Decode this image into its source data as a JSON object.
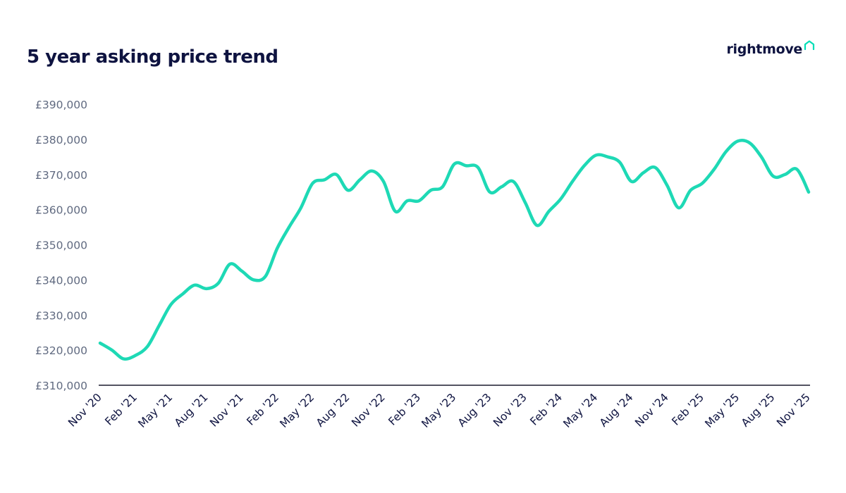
{
  "title": "5 year asking price trend",
  "brand": {
    "name": "rightmove",
    "icon": "house-icon",
    "icon_color": "#00deb6"
  },
  "chart_data": {
    "type": "line",
    "title": "5 year asking price trend",
    "xlabel": "",
    "ylabel": "",
    "ylim": [
      310000,
      390000
    ],
    "y_ticks": [
      "£390,000",
      "£380,000",
      "£370,000",
      "£360,000",
      "£350,000",
      "£340,000",
      "£330,000",
      "£320,000",
      "£310,000"
    ],
    "y_tick_values": [
      390000,
      380000,
      370000,
      360000,
      350000,
      340000,
      330000,
      320000,
      310000
    ],
    "x_ticks": [
      "Nov '20",
      "Feb '21",
      "May '21",
      "Aug '21",
      "Nov '21",
      "Feb '22",
      "May '22",
      "Aug '22",
      "Nov '22",
      "Feb '23",
      "May '23",
      "Aug '23",
      "Nov '23",
      "Feb '24",
      "May '24",
      "Aug '24",
      "Nov '24",
      "Feb '25",
      "May '25",
      "Aug '25",
      "Nov '25"
    ],
    "x": [
      "Nov '20",
      "Dec '20",
      "Jan '21",
      "Feb '21",
      "Mar '21",
      "Apr '21",
      "May '21",
      "Jun '21",
      "Jul '21",
      "Aug '21",
      "Sep '21",
      "Oct '21",
      "Nov '21",
      "Dec '21",
      "Jan '22",
      "Feb '22",
      "Mar '22",
      "Apr '22",
      "May '22",
      "Jun '22",
      "Jul '22",
      "Aug '22",
      "Sep '22",
      "Oct '22",
      "Nov '22",
      "Dec '22",
      "Jan '23",
      "Feb '23",
      "Mar '23",
      "Apr '23",
      "May '23",
      "Jun '23",
      "Jul '23",
      "Aug '23",
      "Sep '23",
      "Oct '23",
      "Nov '23",
      "Dec '23",
      "Jan '24",
      "Feb '24",
      "Mar '24",
      "Apr '24",
      "May '24",
      "Jun '24",
      "Jul '24",
      "Aug '24",
      "Sep '24",
      "Oct '24",
      "Nov '24",
      "Dec '24",
      "Jan '25",
      "Feb '25",
      "Mar '25",
      "Apr '25",
      "May '25",
      "Jun '25",
      "Jul '25",
      "Aug '25",
      "Sep '25",
      "Oct '25",
      "Nov '25"
    ],
    "series": [
      {
        "color": "#1ed9b5",
        "values": [
          322000,
          320000,
          317500,
          318500,
          321000,
          327000,
          333000,
          336000,
          338500,
          337500,
          339000,
          344500,
          342500,
          340000,
          341000,
          349000,
          355000,
          360500,
          367500,
          368500,
          370000,
          365500,
          368500,
          371000,
          368000,
          359500,
          362500,
          362500,
          365500,
          366500,
          373000,
          372500,
          372000,
          365000,
          366500,
          368000,
          362000,
          355500,
          359500,
          363000,
          368000,
          372500,
          375500,
          375000,
          373500,
          368000,
          370500,
          372000,
          367000,
          360500,
          365500,
          367500,
          371500,
          376500,
          379500,
          379000,
          375000,
          369500,
          370000,
          371500,
          365000
        ]
      }
    ],
    "grid": false,
    "legend": "none"
  }
}
